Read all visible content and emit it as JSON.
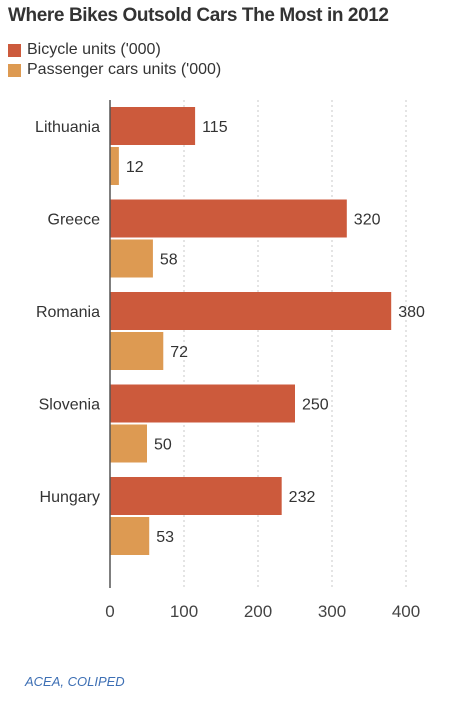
{
  "chart_data": {
    "type": "bar",
    "orientation": "horizontal",
    "title": "Where Bikes Outsold Cars The Most in 2012",
    "categories": [
      "Lithuania",
      "Greece",
      "Romania",
      "Slovenia",
      "Hungary"
    ],
    "series": [
      {
        "name": "Bicycle units ('000)",
        "values": [
          115,
          320,
          380,
          250,
          232
        ],
        "color": "#cc5a3c"
      },
      {
        "name": "Passenger cars units ('000)",
        "values": [
          12,
          58,
          72,
          50,
          53
        ],
        "color": "#dd9a52"
      }
    ],
    "xlim": [
      0,
      400
    ],
    "xticks": [
      "0",
      "100",
      "200",
      "300",
      "400"
    ],
    "grid": "vertical dotted",
    "legend_position": "top-left"
  },
  "source": "ACEA, COLIPED"
}
